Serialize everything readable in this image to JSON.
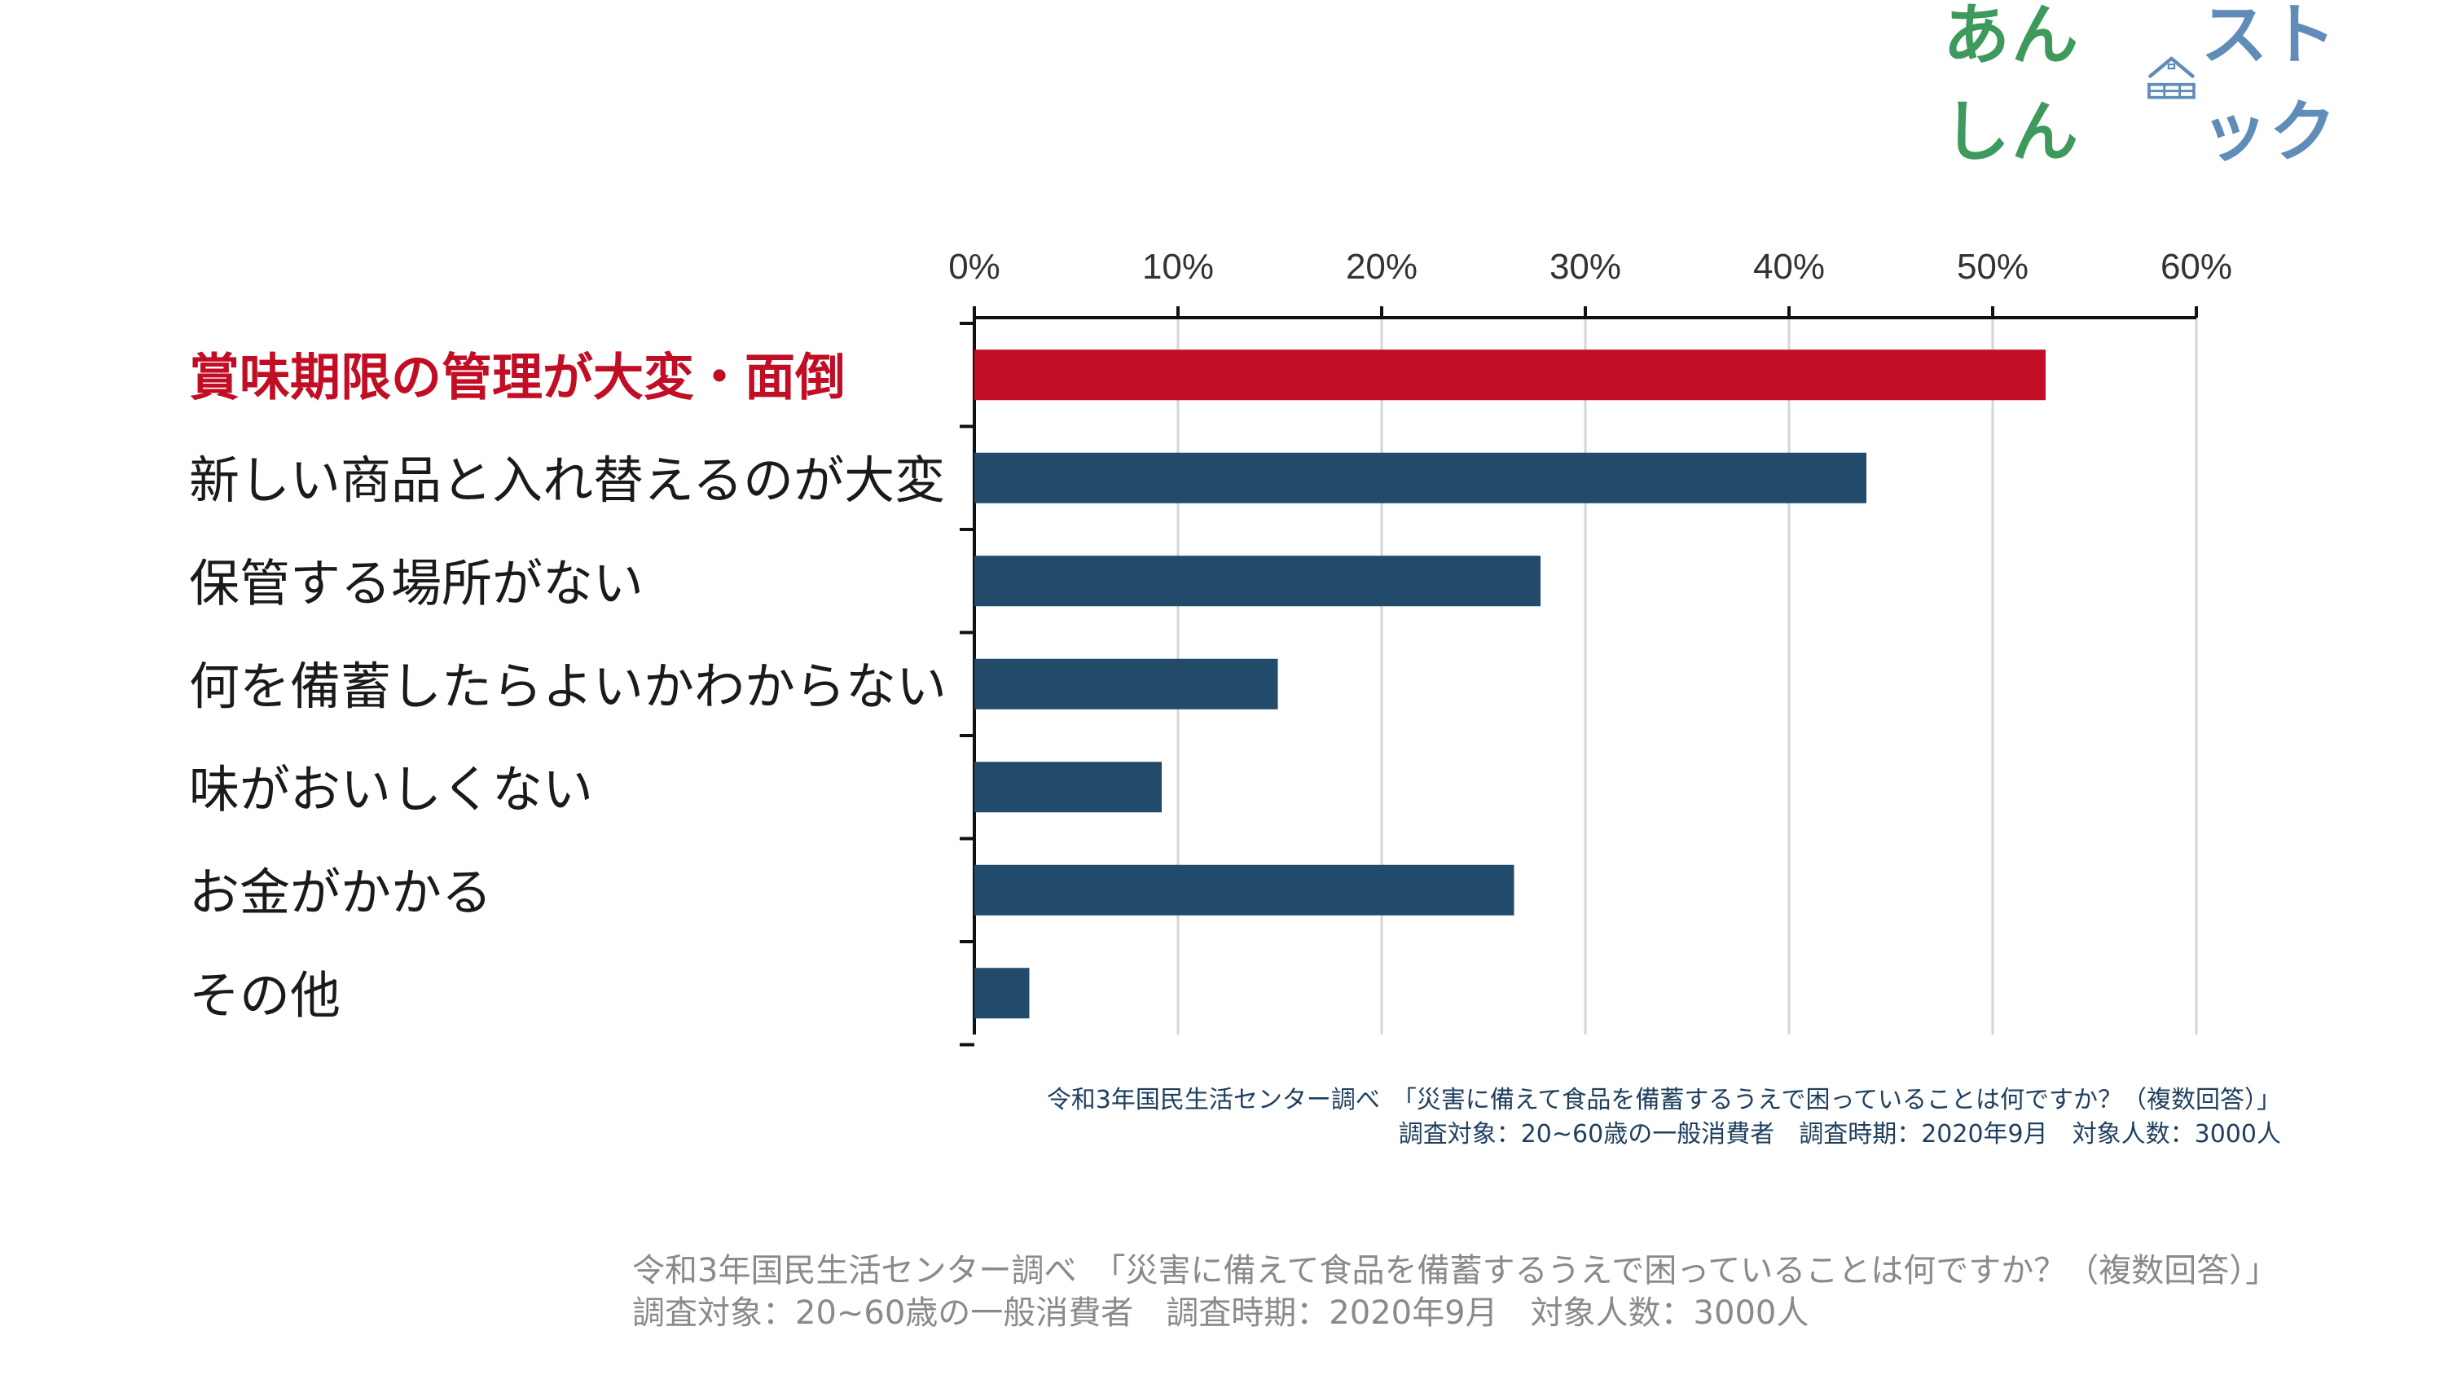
{
  "brand": {
    "name_part1": "あんしん",
    "name_part2": "ストック",
    "color1": "#3d9a5c",
    "color2": "#5f8cb8",
    "house_icon": "house-icon"
  },
  "colors": {
    "highlight": "#c20e24",
    "bar": "#214a6b",
    "grid": "#d6d6d6",
    "axis": "#111111",
    "label": "#1a1a1a",
    "source_small": "#1f3f5e",
    "source_large": "#8a8a8a"
  },
  "chart_data": {
    "type": "bar",
    "orientation": "horizontal",
    "categories": [
      "賞味期限の管理が大変・面倒",
      "新しい商品と入れ替えるのが大変",
      "保管する場所がない",
      "何を備蓄したらよいかわからない",
      "味がおいしくない",
      "お金がかかる",
      "その他"
    ],
    "values": [
      52.6,
      43.8,
      27.8,
      14.9,
      9.2,
      26.5,
      2.7
    ],
    "highlight_index": 0,
    "xlim": [
      0,
      60
    ],
    "ticks": [
      0,
      10,
      20,
      30,
      40,
      50,
      60
    ],
    "tick_labels": [
      "0%",
      "10%",
      "20%",
      "30%",
      "40%",
      "50%",
      "60%"
    ],
    "unit": "%",
    "grid": true,
    "axis_position": "top",
    "title": "",
    "xlabel": "",
    "ylabel": ""
  },
  "source_small": {
    "line1": "令和3年国民生活センター調べ　「災害に備えて食品を備蓄するうえで困っていることは何ですか？（複数回答）」",
    "line2": "調査対象：20~60歳の一般消費者　調査時期：2020年9月　対象人数：3000人"
  },
  "source_large": {
    "line1": "令和3年国民生活センター調べ　「災害に備えて食品を備蓄するうえで困っていることは何ですか？（複数回答）」",
    "line2": "調査対象：20~60歳の一般消費者　調査時期：2020年9月　対象人数：3000人"
  }
}
